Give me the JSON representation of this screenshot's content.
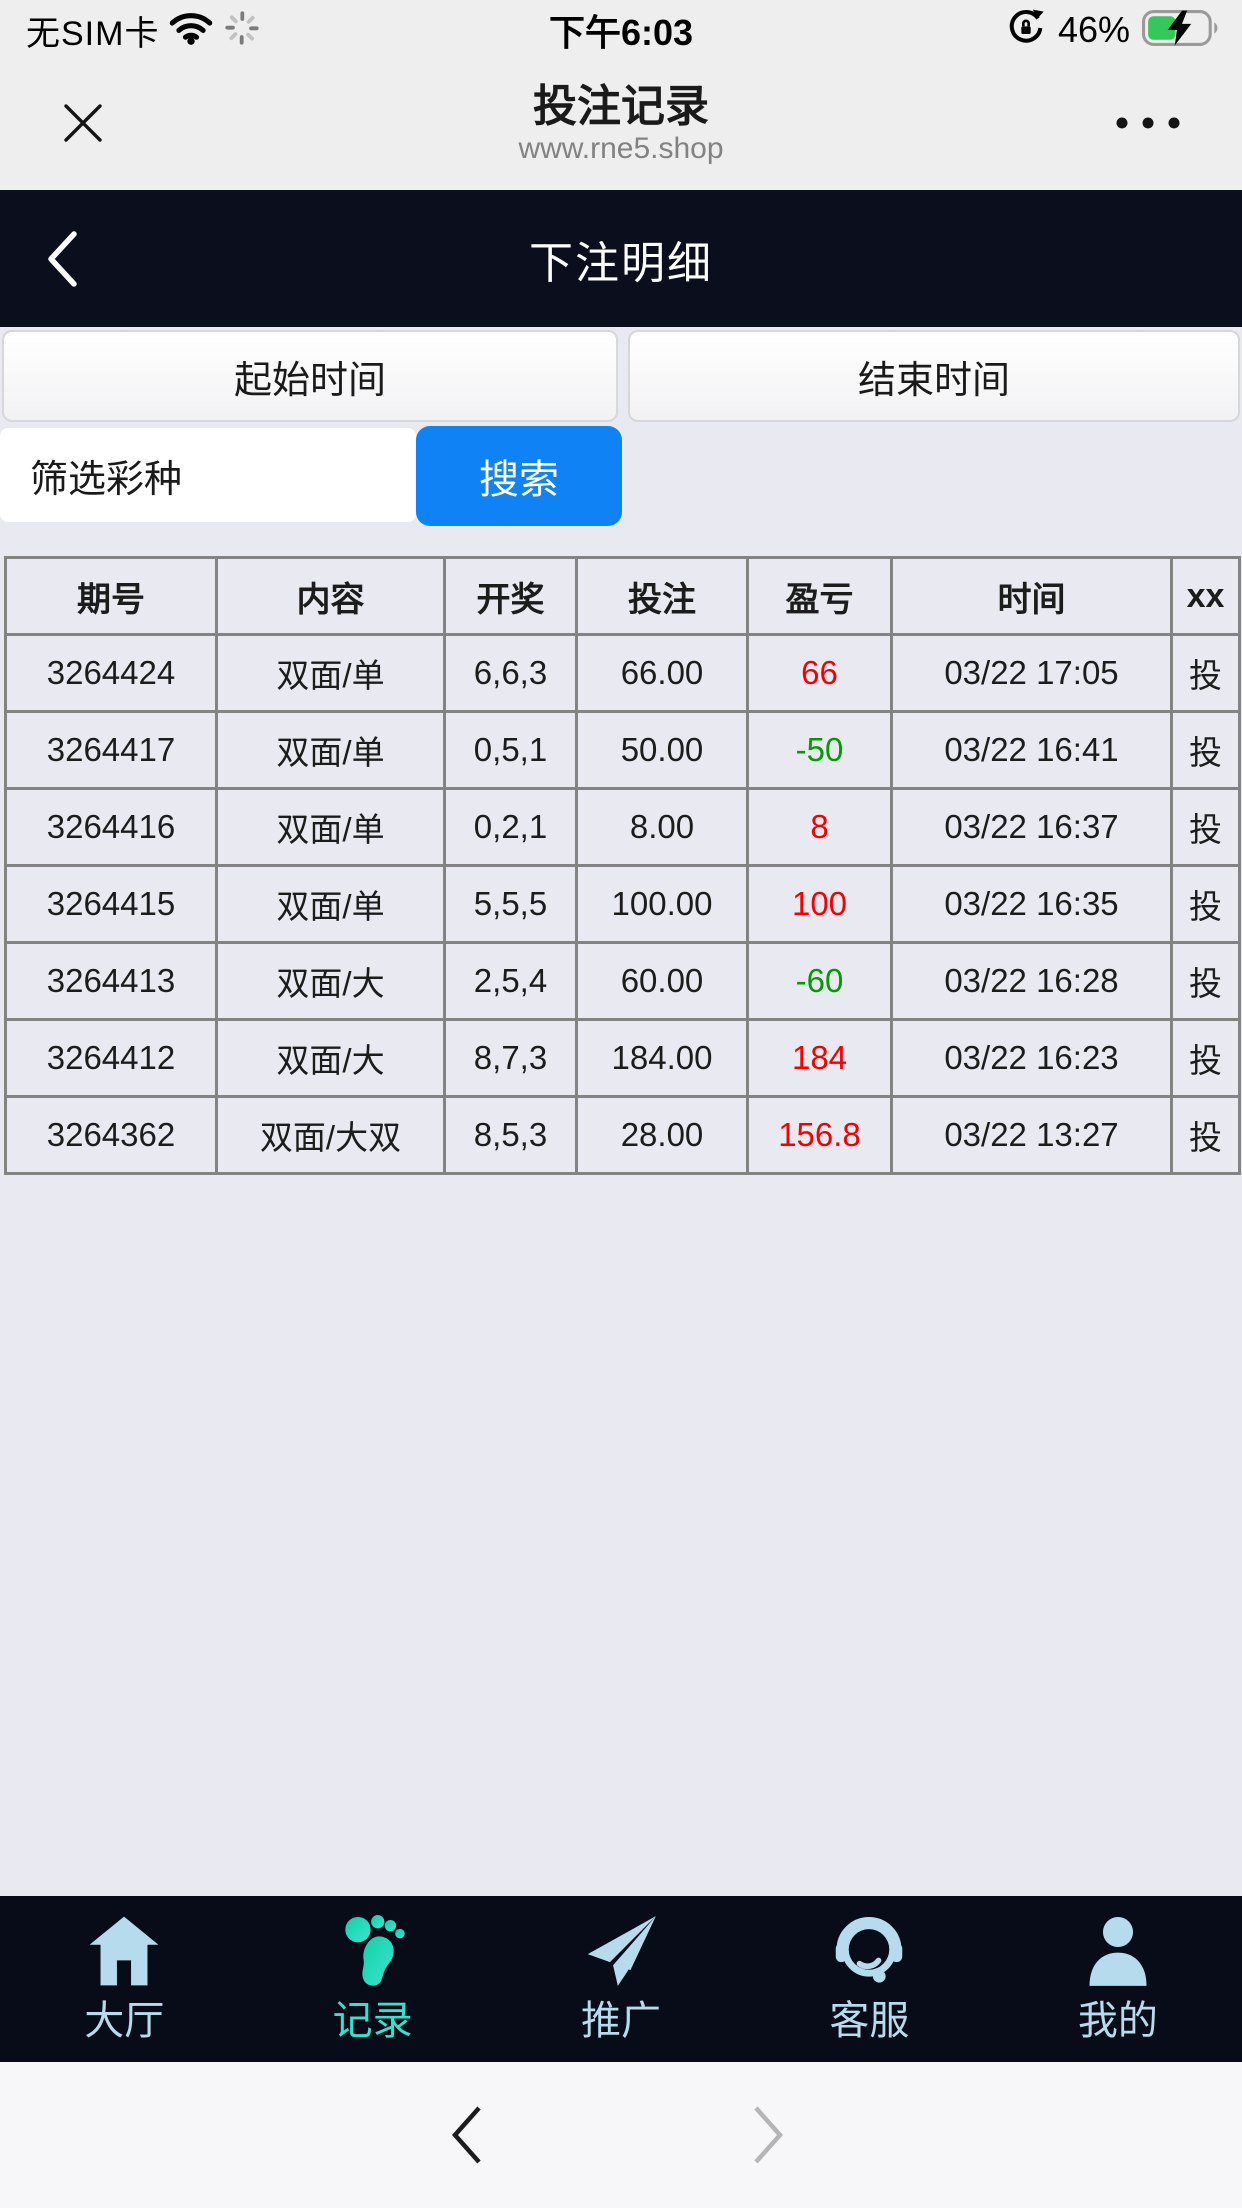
{
  "status_bar": {
    "carrier": "无SIM卡",
    "time": "下午6:03",
    "battery_label": "46%",
    "battery_percent": 46,
    "battery_color": "#34c759"
  },
  "browser_chrome": {
    "title": "投注记录",
    "url": "www.rne5.shop"
  },
  "app_header": {
    "title": "下注明细"
  },
  "filters": {
    "start_time": "起始时间",
    "end_time": "结束时间",
    "lottery_type": "筛选彩种",
    "search": "搜索",
    "accent_color": "#0f82f6"
  },
  "table": {
    "headers": [
      "期号",
      "内容",
      "开奖",
      "投注",
      "盈亏",
      "时间",
      "xx"
    ],
    "win_color": "#f50000",
    "loss_color": "#009c00",
    "rows": [
      {
        "period": "3264424",
        "content": "双面/单",
        "draw": "6,6,3",
        "bet": "66.00",
        "profit": "66",
        "time": "03/22 17:05",
        "action": "投"
      },
      {
        "period": "3264417",
        "content": "双面/单",
        "draw": "0,5,1",
        "bet": "50.00",
        "profit": "-50",
        "time": "03/22 16:41",
        "action": "投"
      },
      {
        "period": "3264416",
        "content": "双面/单",
        "draw": "0,2,1",
        "bet": "8.00",
        "profit": "8",
        "time": "03/22 16:37",
        "action": "投"
      },
      {
        "period": "3264415",
        "content": "双面/单",
        "draw": "5,5,5",
        "bet": "100.00",
        "profit": "100",
        "time": "03/22 16:35",
        "action": "投"
      },
      {
        "period": "3264413",
        "content": "双面/大",
        "draw": "2,5,4",
        "bet": "60.00",
        "profit": "-60",
        "time": "03/22 16:28",
        "action": "投"
      },
      {
        "period": "3264412",
        "content": "双面/大",
        "draw": "8,7,3",
        "bet": "184.00",
        "profit": "184",
        "time": "03/22 16:23",
        "action": "投"
      },
      {
        "period": "3264362",
        "content": "双面/大双",
        "draw": "8,5,3",
        "bet": "28.00",
        "profit": "156.8",
        "time": "03/22 13:27",
        "action": "投"
      }
    ]
  },
  "tab_bar": {
    "active_color": "#34e3cd",
    "inactive_color": "#b6dbec",
    "items": [
      {
        "label": "大厅",
        "icon": "home-icon",
        "active": false
      },
      {
        "label": "记录",
        "icon": "footprint-icon",
        "active": true
      },
      {
        "label": "推广",
        "icon": "paper-plane-icon",
        "active": false
      },
      {
        "label": "客服",
        "icon": "headset-icon",
        "active": false
      },
      {
        "label": "我的",
        "icon": "person-icon",
        "active": false
      }
    ]
  }
}
